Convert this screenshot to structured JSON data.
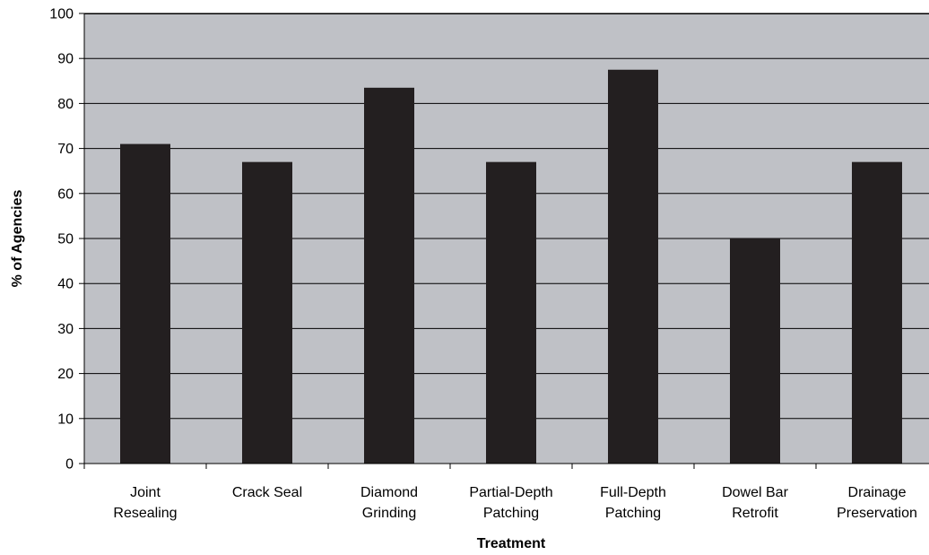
{
  "chart_data": {
    "type": "bar",
    "title": "",
    "xlabel": "Treatment",
    "ylabel": "% of Agencies",
    "ylim": [
      0,
      100
    ],
    "yticks": [
      0,
      10,
      20,
      30,
      40,
      50,
      60,
      70,
      80,
      90,
      100
    ],
    "grid": true,
    "legend": "none",
    "categories": [
      [
        "Joint",
        "Resealing"
      ],
      [
        "Crack Seal"
      ],
      [
        "Diamond",
        "Grinding"
      ],
      [
        "Partial-Depth",
        "Patching"
      ],
      [
        "Full-Depth",
        "Patching"
      ],
      [
        "Dowel Bar",
        "Retrofit"
      ],
      [
        "Drainage",
        "Preservation"
      ]
    ],
    "values": [
      71,
      67,
      83.5,
      67,
      87.5,
      50,
      67
    ],
    "colors": {
      "plot_background": "#bfc1c6",
      "bar": "#231f20",
      "grid": "#000000",
      "axis": "#000000"
    }
  }
}
